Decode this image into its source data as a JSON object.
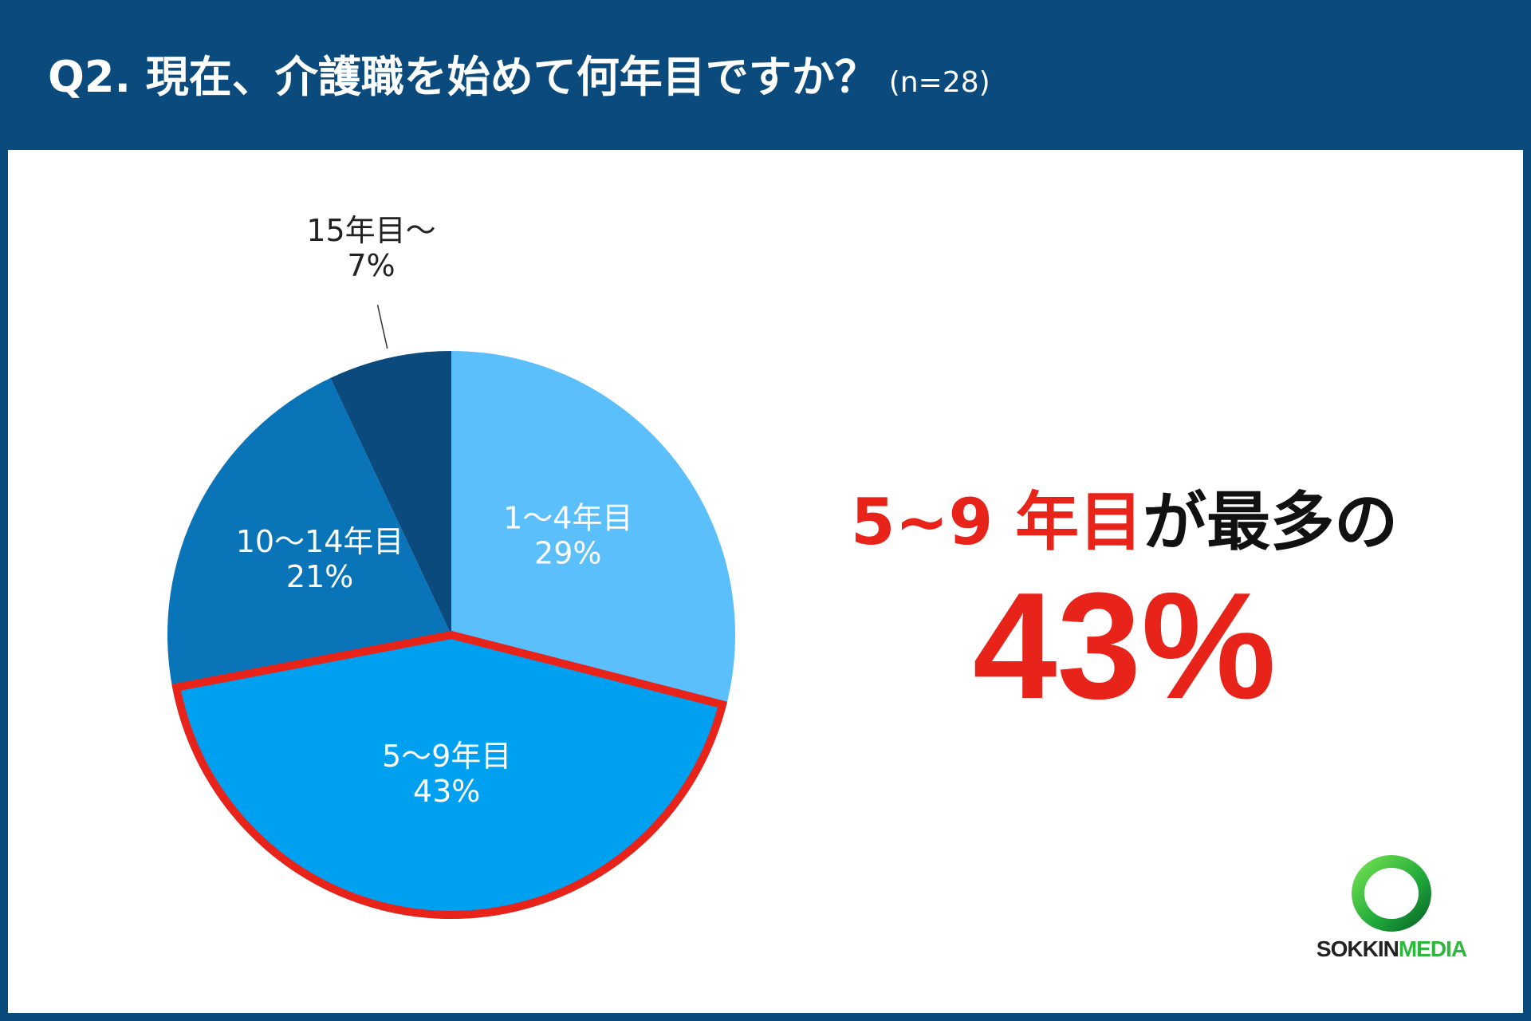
{
  "header": {
    "title": "Q2. 現在、介護職を始めて何年目ですか？",
    "sample": "(n=28)"
  },
  "chart_data": {
    "type": "pie",
    "slices": [
      {
        "name": "1〜4年目",
        "value": 29,
        "label": "29%",
        "color": "#5bbffb"
      },
      {
        "name": "5〜9年目",
        "value": 43,
        "label": "43%",
        "color": "#00a0f0",
        "highlight": true
      },
      {
        "name": "10〜14年目",
        "value": 21,
        "label": "21%",
        "color": "#0a74b8"
      },
      {
        "name": "15年目〜",
        "value": 7,
        "label": "7%",
        "color": "#0a4a7c"
      }
    ],
    "highlight_color": "#e8231a"
  },
  "callout": {
    "category": "5~9 年目",
    "suffix": "が最多の",
    "value": "43%"
  },
  "logo": {
    "part1": "SOKKIN",
    "part2": "MEDIA"
  }
}
